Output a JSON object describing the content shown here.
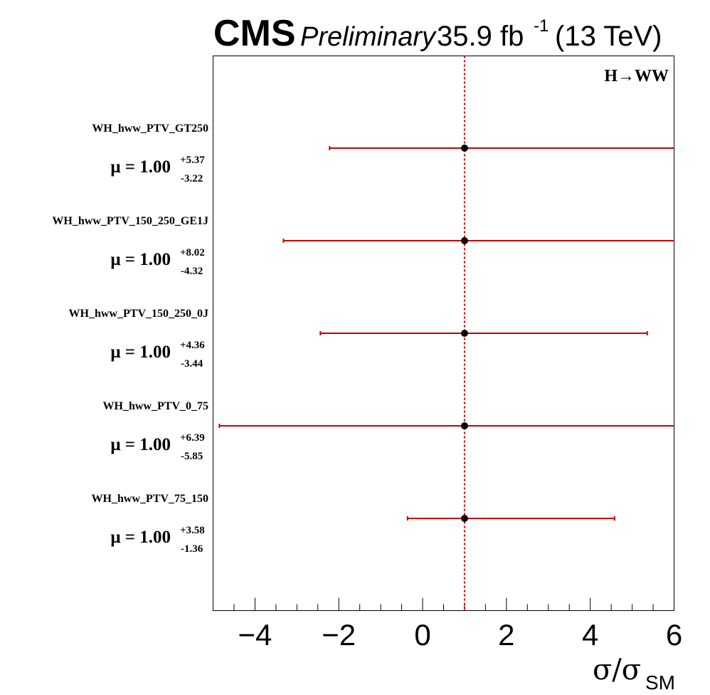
{
  "header": {
    "experiment": "CMS",
    "status": "Preliminary",
    "lumi_value": "35.9 fb",
    "lumi_exp": "-1",
    "energy": "(13 TeV)"
  },
  "chart_data": {
    "type": "scatter",
    "annotation": "H→WW",
    "xlabel_main": "σ/σ",
    "xlabel_sub": "SM",
    "xlim": [
      -5,
      6
    ],
    "xticks": [
      -4,
      -2,
      0,
      2,
      4,
      6
    ],
    "xtick_labels": [
      "−4",
      "−2",
      "0",
      "2",
      "4",
      "6"
    ],
    "reference_line": 1.0,
    "grid": false,
    "mu_prefix": "μ = ",
    "categories": [
      {
        "name": "WH_hww_PTV_GT250",
        "mu": 1.0,
        "mu_text": "1.00",
        "up": 5.37,
        "up_text": "+5.37",
        "down": 3.22,
        "down_text": "-3.22"
      },
      {
        "name": "WH_hww_PTV_150_250_GE1J",
        "mu": 1.0,
        "mu_text": "1.00",
        "up": 8.02,
        "up_text": "+8.02",
        "down": 4.32,
        "down_text": "-4.32"
      },
      {
        "name": "WH_hww_PTV_150_250_0J",
        "mu": 1.0,
        "mu_text": "1.00",
        "up": 4.36,
        "up_text": "+4.36",
        "down": 3.44,
        "down_text": "-3.44"
      },
      {
        "name": "WH_hww_PTV_0_75",
        "mu": 1.0,
        "mu_text": "1.00",
        "up": 6.39,
        "up_text": "+6.39",
        "down": 5.85,
        "down_text": "-5.85"
      },
      {
        "name": "WH_hww_PTV_75_150",
        "mu": 1.0,
        "mu_text": "1.00",
        "up": 3.58,
        "up_text": "+3.58",
        "down": 1.36,
        "down_text": "-1.36"
      }
    ],
    "colors": {
      "error_bar": "#cc0000",
      "marker": "#000000",
      "reference_line": "#dd0000"
    }
  }
}
